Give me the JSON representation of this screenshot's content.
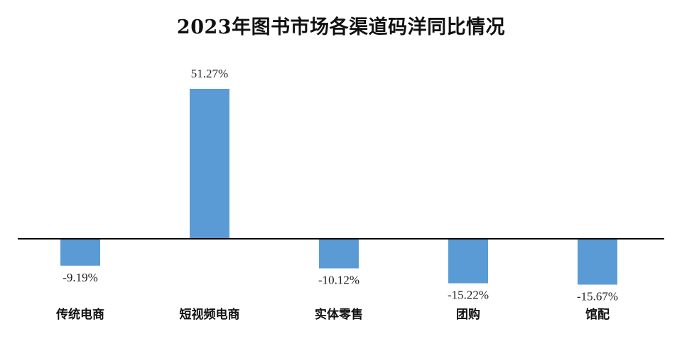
{
  "chart_data": {
    "type": "bar",
    "title": "2023年图书市场各渠道码洋同比情况",
    "categories": [
      "传统电商",
      "短视频电商",
      "实体零售",
      "团购",
      "馆配"
    ],
    "values": [
      -9.19,
      51.27,
      -10.12,
      -15.22,
      -15.67
    ],
    "value_labels": [
      "-9.19%",
      "51.27%",
      "-10.12%",
      "-15.22%",
      "-15.67%"
    ],
    "ylim": [
      -20,
      60
    ],
    "grid": false,
    "legend": "none",
    "bar_color": "#5b9bd5"
  }
}
